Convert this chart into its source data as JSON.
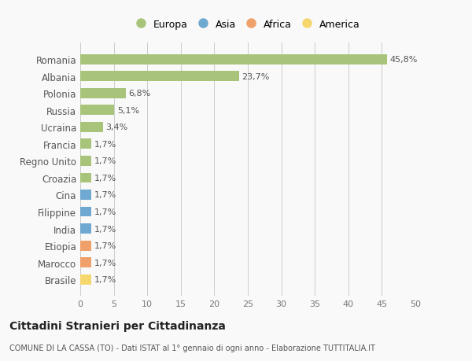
{
  "categories": [
    "Brasile",
    "Marocco",
    "Etiopia",
    "India",
    "Filippine",
    "Cina",
    "Croazia",
    "Regno Unito",
    "Francia",
    "Ucraina",
    "Russia",
    "Polonia",
    "Albania",
    "Romania"
  ],
  "values": [
    1.7,
    1.7,
    1.7,
    1.7,
    1.7,
    1.7,
    1.7,
    1.7,
    1.7,
    3.4,
    5.1,
    6.8,
    23.7,
    45.8
  ],
  "colors": [
    "#f5d76e",
    "#f0a06a",
    "#f0a06a",
    "#6fa8d0",
    "#6fa8d0",
    "#6fa8d0",
    "#a8c47a",
    "#a8c47a",
    "#a8c47a",
    "#a8c47a",
    "#a8c47a",
    "#a8c47a",
    "#a8c47a",
    "#a8c47a"
  ],
  "legend_labels": [
    "Europa",
    "Asia",
    "Africa",
    "America"
  ],
  "legend_colors": [
    "#a8c47a",
    "#6fa8d0",
    "#f0a06a",
    "#f5d76e"
  ],
  "labels": [
    "1,7%",
    "1,7%",
    "1,7%",
    "1,7%",
    "1,7%",
    "1,7%",
    "1,7%",
    "1,7%",
    "1,7%",
    "3,4%",
    "5,1%",
    "6,8%",
    "23,7%",
    "45,8%"
  ],
  "title": "Cittadini Stranieri per Cittadinanza",
  "subtitle": "COMUNE DI LA CASSA (TO) - Dati ISTAT al 1° gennaio di ogni anno - Elaborazione TUTTITALIA.IT",
  "xlim": [
    0,
    50
  ],
  "xticks": [
    0,
    5,
    10,
    15,
    20,
    25,
    30,
    35,
    40,
    45,
    50
  ],
  "bg_color": "#f9f9f9",
  "grid_color": "#cccccc",
  "bar_height": 0.6
}
